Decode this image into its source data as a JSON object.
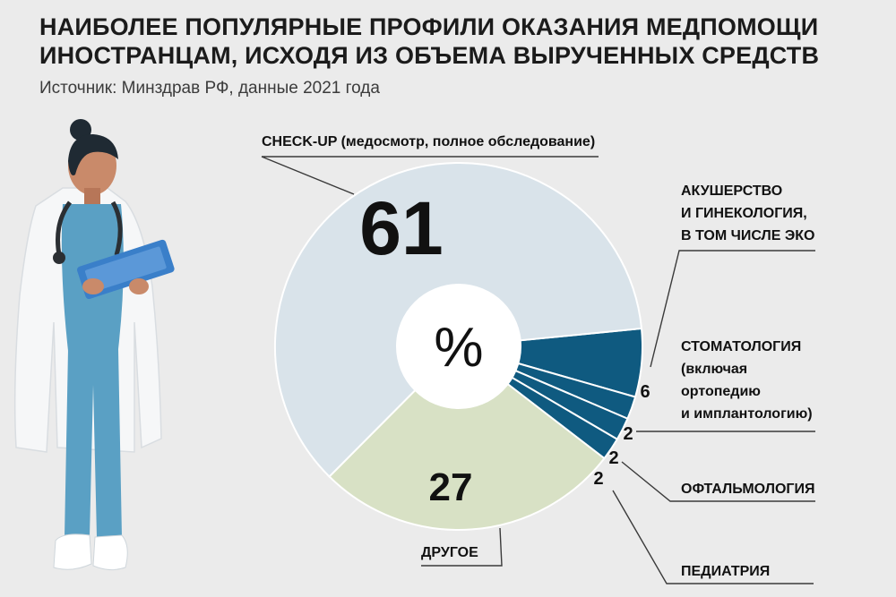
{
  "title_lines": [
    "НАИБОЛЕЕ ПОПУЛЯРНЫЕ ПРОФИЛИ ОКАЗАНИЯ МЕДПОМОЩИ",
    "ИНОСТРАНЦАМ, ИСХОДЯ ИЗ ОБЪЕМА ВЫРУЧЕННЫХ СРЕДСТВ"
  ],
  "source": "Источник: Минздрав РФ, данные 2021 года",
  "center_label": "%",
  "colors": {
    "checkup": "#d9e3ea",
    "other": "#d8e1c5",
    "specialty": "#0f5a80",
    "background": "#ebebeb",
    "center": "#ffffff",
    "scrubs": "#5aa0c4",
    "clipboard": "#3a7fc9"
  },
  "icons": [
    "doctor-illustration"
  ],
  "chart_data": {
    "type": "pie",
    "title": "НАИБОЛЕЕ ПОПУЛЯРНЫЕ ПРОФИЛИ ОКАЗАНИЯ МЕДПОМОЩИ ИНОСТРАНЦАМ, ИСХОДЯ ИЗ ОБЪЕМА ВЫРУЧЕННЫХ СРЕДСТВ",
    "unit": "%",
    "slices": [
      {
        "key": "checkup",
        "label_lines": [
          "CHECK-UP (медосмотр, полное обследование)"
        ],
        "value": 61,
        "value_label": "61"
      },
      {
        "key": "obgyn",
        "label_lines": [
          "АКУШЕРСТВО",
          "И ГИНЕКОЛОГИЯ,",
          "В ТОМ ЧИСЛЕ ЭКО"
        ],
        "value": 6,
        "value_label": "6"
      },
      {
        "key": "dentistry",
        "label_lines": [
          "СТОМАТОЛОГИЯ",
          "(включая",
          "ортопедию",
          "и имплантологию)"
        ],
        "value": 2,
        "value_label": "2"
      },
      {
        "key": "ophthalmology",
        "label_lines": [
          "ОФТАЛЬМОЛОГИЯ"
        ],
        "value": 2,
        "value_label": "2"
      },
      {
        "key": "pediatrics",
        "label_lines": [
          "ПЕДИАТРИЯ"
        ],
        "value": 2,
        "value_label": "2"
      },
      {
        "key": "other",
        "label_lines": [
          "ДРУГОЕ"
        ],
        "value": 27,
        "value_label": "27"
      }
    ]
  }
}
